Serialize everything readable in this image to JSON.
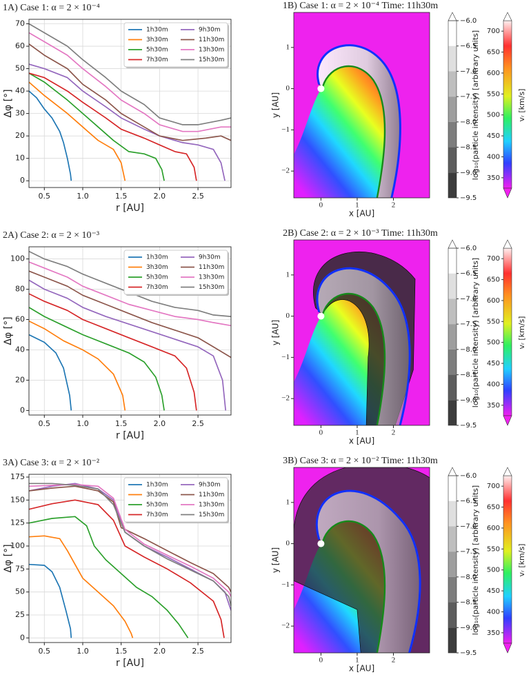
{
  "chart_data": [
    {
      "type": "line",
      "title": "1A) Case 1: α = 2 × 10⁻⁴",
      "xlabel": "r [AU]",
      "ylabel": "Δφ [°]",
      "xlim": [
        0.3,
        2.93
      ],
      "ylim": [
        -3,
        72
      ],
      "xticks": [
        0.5,
        {
          "value": 1,
          "label": "1.0"
        },
        1.5,
        {
          "value": 2,
          "label": "2.0"
        },
        2.5
      ],
      "yticks": [
        0,
        10,
        20,
        30,
        40,
        50,
        60,
        70
      ],
      "grid": true,
      "legend": "upper right",
      "series": [
        {
          "name": "1h30m",
          "color": "#1f77b4",
          "x": [
            0.3,
            0.4,
            0.5,
            0.6,
            0.7,
            0.75,
            0.8,
            0.84,
            0.85
          ],
          "values": [
            40,
            37,
            32,
            28,
            22,
            17,
            10,
            3,
            0
          ]
        },
        {
          "name": "3h30m",
          "color": "#ff7f0e",
          "x": [
            0.3,
            0.5,
            0.8,
            1.0,
            1.2,
            1.4,
            1.5,
            1.55
          ],
          "values": [
            44,
            38,
            30,
            24,
            18,
            14,
            8,
            0
          ]
        },
        {
          "name": "5h30m",
          "color": "#2ca02c",
          "x": [
            0.3,
            0.5,
            0.8,
            1.0,
            1.2,
            1.4,
            1.6,
            1.8,
            1.95,
            2.03,
            2.06
          ],
          "values": [
            48,
            44,
            36,
            30,
            24,
            18,
            13,
            12,
            10,
            5,
            0
          ]
        },
        {
          "name": "7h30m",
          "color": "#d62728",
          "x": [
            0.3,
            0.5,
            0.8,
            1.0,
            1.3,
            1.5,
            1.8,
            2.0,
            2.2,
            2.35,
            2.45,
            2.48
          ],
          "values": [
            48,
            46,
            40,
            35,
            28,
            23,
            19,
            16,
            13,
            12,
            6,
            0
          ]
        },
        {
          "name": "9h30m",
          "color": "#9467bd",
          "x": [
            0.3,
            0.5,
            0.8,
            1.0,
            1.3,
            1.5,
            1.8,
            2.0,
            2.3,
            2.5,
            2.7,
            2.8,
            2.85
          ],
          "values": [
            52,
            50,
            46,
            40,
            33,
            28,
            23,
            20,
            17,
            16,
            14,
            8,
            0
          ]
        },
        {
          "name": "11h30m",
          "color": "#8c564b",
          "x": [
            0.3,
            0.5,
            0.8,
            1.0,
            1.3,
            1.5,
            1.8,
            2.0,
            2.3,
            2.6,
            2.8,
            2.93
          ],
          "values": [
            61,
            56,
            50,
            43,
            36,
            30,
            24,
            20,
            18,
            19,
            20,
            18
          ]
        },
        {
          "name": "13h30m",
          "color": "#e377c2",
          "x": [
            0.3,
            0.5,
            0.8,
            1.0,
            1.3,
            1.5,
            1.8,
            2.0,
            2.3,
            2.5,
            2.8,
            2.93
          ],
          "values": [
            66,
            62,
            56,
            50,
            42,
            36,
            30,
            25,
            22,
            22,
            24,
            24
          ]
        },
        {
          "name": "15h30m",
          "color": "#7f7f7f",
          "x": [
            0.3,
            0.5,
            0.8,
            1.0,
            1.3,
            1.5,
            1.8,
            2.0,
            2.3,
            2.5,
            2.8,
            2.93
          ],
          "values": [
            70,
            66,
            60,
            54,
            46,
            40,
            34,
            28,
            25,
            25,
            27,
            28
          ]
        }
      ]
    },
    {
      "type": "heatmap",
      "title": "1B) Case 1: α = 2 × 10⁻⁴ Time: 11h30m",
      "xlabel": "x [AU]",
      "ylabel": "y [AU]",
      "xlim": [
        -0.75,
        3.0
      ],
      "ylim": [
        -2.65,
        1.85
      ],
      "xticks": [
        0,
        1,
        2
      ],
      "yticks": [
        {
          "value": -2,
          "label": "−2"
        },
        {
          "value": -1,
          "label": "−1"
        },
        0,
        1
      ],
      "grid": false,
      "colorbars": [
        {
          "label": "log₁₀(particle intensity) [arbitrary units]",
          "lim": [
            -9.5,
            -6.0
          ],
          "ticks": [
            {
              "value": -6,
              "label": "−6.0"
            },
            {
              "value": -6.5,
              "label": "−6.5"
            },
            {
              "value": -7,
              "label": "−7.0"
            },
            {
              "value": -7.5,
              "label": "−7.5"
            },
            {
              "value": -8,
              "label": "−8.0"
            },
            {
              "value": -8.5,
              "label": "−8.5"
            },
            {
              "value": -9,
              "label": "−9.0"
            },
            {
              "value": -9.5,
              "label": "−9.5"
            }
          ]
        },
        {
          "label": "vᵣ [km/s]",
          "lim": [
            325,
            725
          ],
          "ticks": [
            350,
            400,
            450,
            500,
            550,
            600,
            650,
            700
          ]
        }
      ]
    },
    {
      "type": "line",
      "title": "2A) Case 2: α = 2 × 10⁻³",
      "xlabel": "r [AU]",
      "ylabel": "Δφ [°]",
      "xlim": [
        0.3,
        2.93
      ],
      "ylim": [
        -3,
        108
      ],
      "xticks": [
        0.5,
        {
          "value": 1,
          "label": "1.0"
        },
        1.5,
        {
          "value": 2,
          "label": "2.0"
        },
        2.5
      ],
      "yticks": [
        0,
        20,
        40,
        60,
        80,
        100
      ],
      "grid": true,
      "legend": "upper right",
      "series": [
        {
          "name": "1h30m",
          "color": "#1f77b4",
          "x": [
            0.3,
            0.5,
            0.65,
            0.75,
            0.83,
            0.85
          ],
          "values": [
            50,
            45,
            38,
            28,
            10,
            0
          ]
        },
        {
          "name": "3h30m",
          "color": "#ff7f0e",
          "x": [
            0.3,
            0.5,
            0.75,
            1.0,
            1.2,
            1.4,
            1.52,
            1.55
          ],
          "values": [
            59,
            54,
            46,
            40,
            34,
            24,
            10,
            0
          ]
        },
        {
          "name": "5h30m",
          "color": "#2ca02c",
          "x": [
            0.3,
            0.5,
            0.75,
            1.0,
            1.3,
            1.6,
            1.8,
            1.95,
            2.03,
            2.06
          ],
          "values": [
            68,
            62,
            56,
            50,
            44,
            38,
            32,
            22,
            10,
            0
          ]
        },
        {
          "name": "7h30m",
          "color": "#d62728",
          "x": [
            0.3,
            0.5,
            0.8,
            1.0,
            1.3,
            1.6,
            1.9,
            2.2,
            2.35,
            2.45,
            2.48
          ],
          "values": [
            77,
            72,
            66,
            60,
            54,
            48,
            42,
            36,
            28,
            12,
            0
          ]
        },
        {
          "name": "9h30m",
          "color": "#9467bd",
          "x": [
            0.3,
            0.5,
            0.8,
            1.0,
            1.3,
            1.6,
            1.9,
            2.2,
            2.5,
            2.7,
            2.82,
            2.86
          ],
          "values": [
            86,
            80,
            74,
            68,
            62,
            57,
            52,
            47,
            42,
            36,
            20,
            0
          ]
        },
        {
          "name": "11h30m",
          "color": "#8c564b",
          "x": [
            0.3,
            0.5,
            0.8,
            1.0,
            1.3,
            1.6,
            1.9,
            2.2,
            2.5,
            2.7,
            2.93
          ],
          "values": [
            92,
            88,
            82,
            76,
            70,
            64,
            58,
            53,
            48,
            42,
            35
          ]
        },
        {
          "name": "13h30m",
          "color": "#e377c2",
          "x": [
            0.3,
            0.5,
            0.8,
            1.0,
            1.3,
            1.6,
            1.9,
            2.2,
            2.5,
            2.7,
            2.93
          ],
          "values": [
            98,
            94,
            88,
            82,
            76,
            70,
            66,
            62,
            60,
            58,
            56
          ]
        },
        {
          "name": "15h30m",
          "color": "#7f7f7f",
          "x": [
            0.3,
            0.5,
            0.8,
            1.0,
            1.3,
            1.6,
            1.9,
            2.2,
            2.5,
            2.7,
            2.93
          ],
          "values": [
            105,
            100,
            95,
            90,
            84,
            78,
            72,
            68,
            66,
            63,
            62
          ]
        }
      ]
    },
    {
      "type": "heatmap",
      "title": "2B) Case 2: α = 2 × 10⁻³ Time: 11h30m",
      "xlabel": "x [AU]",
      "ylabel": "y [AU]",
      "xlim": [
        -0.75,
        3.0
      ],
      "ylim": [
        -2.65,
        1.85
      ],
      "xticks": [
        0,
        1,
        2
      ],
      "yticks": [
        {
          "value": -2,
          "label": "−2"
        },
        {
          "value": -1,
          "label": "−1"
        },
        0,
        1
      ],
      "grid": false,
      "colorbars": [
        {
          "label": "log₁₀(particle intensity) [arbitrary units]",
          "lim": [
            -9.5,
            -6.0
          ],
          "ticks": [
            {
              "value": -6,
              "label": "−6.0"
            },
            {
              "value": -6.5,
              "label": "−6.5"
            },
            {
              "value": -7,
              "label": "−7.0"
            },
            {
              "value": -7.5,
              "label": "−7.5"
            },
            {
              "value": -8,
              "label": "−8.0"
            },
            {
              "value": -8.5,
              "label": "−8.5"
            },
            {
              "value": -9,
              "label": "−9.0"
            },
            {
              "value": -9.5,
              "label": "−9.5"
            }
          ]
        },
        {
          "label": "vᵣ [km/s]",
          "lim": [
            325,
            725
          ],
          "ticks": [
            350,
            400,
            450,
            500,
            550,
            600,
            650,
            700
          ]
        }
      ]
    },
    {
      "type": "line",
      "title": "3A) Case 3: α = 2 × 10⁻²",
      "xlabel": "r [AU]",
      "ylabel": "Δφ [°]",
      "xlim": [
        0.3,
        2.93
      ],
      "ylim": [
        -5,
        178
      ],
      "xticks": [
        0.5,
        {
          "value": 1,
          "label": "1.0"
        },
        1.5,
        {
          "value": 2,
          "label": "2.0"
        },
        2.5
      ],
      "yticks": [
        0,
        25,
        50,
        75,
        100,
        125,
        150,
        175
      ],
      "grid": true,
      "legend": "upper right",
      "series": [
        {
          "name": "1h30m",
          "color": "#1f77b4",
          "x": [
            0.3,
            0.5,
            0.6,
            0.7,
            0.78,
            0.84,
            0.85
          ],
          "values": [
            80,
            79,
            72,
            55,
            30,
            10,
            0
          ]
        },
        {
          "name": "3h30m",
          "color": "#ff7f0e",
          "x": [
            0.3,
            0.5,
            0.7,
            0.8,
            0.9,
            1.0,
            1.2,
            1.4,
            1.55,
            1.63,
            1.65
          ],
          "values": [
            110,
            111,
            108,
            95,
            80,
            65,
            50,
            35,
            18,
            5,
            0
          ]
        },
        {
          "name": "5h30m",
          "color": "#2ca02c",
          "x": [
            0.3,
            0.6,
            0.9,
            1.05,
            1.15,
            1.3,
            1.5,
            1.7,
            1.9,
            2.1,
            2.25,
            2.37
          ],
          "values": [
            125,
            130,
            132,
            122,
            100,
            85,
            70,
            55,
            45,
            30,
            15,
            0
          ]
        },
        {
          "name": "7h30m",
          "color": "#d62728",
          "x": [
            0.3,
            0.6,
            0.9,
            1.2,
            1.4,
            1.55,
            1.8,
            2.1,
            2.4,
            2.7,
            2.8,
            2.84
          ],
          "values": [
            140,
            146,
            150,
            145,
            128,
            100,
            88,
            75,
            60,
            40,
            20,
            0
          ]
        },
        {
          "name": "9h30m",
          "color": "#9467bd",
          "x": [
            0.3,
            0.6,
            0.9,
            1.2,
            1.4,
            1.55,
            1.8,
            2.1,
            2.4,
            2.7,
            2.85,
            2.93
          ],
          "values": [
            160,
            165,
            168,
            162,
            150,
            115,
            100,
            88,
            75,
            62,
            50,
            30
          ]
        },
        {
          "name": "11h30m",
          "color": "#8c564b",
          "x": [
            0.3,
            0.6,
            0.9,
            1.2,
            1.4,
            1.5,
            1.8,
            2.1,
            2.4,
            2.7,
            2.9,
            2.93
          ],
          "values": [
            160,
            163,
            165,
            160,
            148,
            120,
            108,
            95,
            82,
            70,
            55,
            50
          ]
        },
        {
          "name": "13h30m",
          "color": "#e377c2",
          "x": [
            0.3,
            0.6,
            0.9,
            1.2,
            1.4,
            1.55,
            1.8,
            2.1,
            2.4,
            2.7,
            2.9,
            2.93
          ],
          "values": [
            165,
            166,
            167,
            165,
            152,
            118,
            102,
            90,
            78,
            65,
            50,
            45
          ]
        },
        {
          "name": "15h30m",
          "color": "#7f7f7f",
          "x": [
            0.3,
            0.6,
            0.9,
            1.2,
            1.4,
            1.55,
            1.8,
            2.1,
            2.4,
            2.7,
            2.9,
            2.93
          ],
          "values": [
            168,
            168,
            166,
            162,
            145,
            115,
            100,
            86,
            74,
            62,
            45,
            35
          ]
        }
      ]
    },
    {
      "type": "heatmap",
      "title": "3B) Case 3: α = 2 × 10⁻² Time: 11h30m",
      "xlabel": "x [AU]",
      "ylabel": "y [AU]",
      "xlim": [
        -0.75,
        3.0
      ],
      "ylim": [
        -2.65,
        1.85
      ],
      "xticks": [
        0,
        1,
        2
      ],
      "yticks": [
        {
          "value": -2,
          "label": "−2"
        },
        {
          "value": -1,
          "label": "−1"
        },
        0,
        1
      ],
      "grid": false,
      "colorbars": [
        {
          "label": "log₁₀(particle intensity) [arbitrary units]",
          "lim": [
            -9.5,
            -6.0
          ],
          "ticks": [
            {
              "value": -6,
              "label": "−6.0"
            },
            {
              "value": -6.5,
              "label": "−6.5"
            },
            {
              "value": -7,
              "label": "−7.0"
            },
            {
              "value": -7.5,
              "label": "−7.5"
            },
            {
              "value": -8,
              "label": "−8.0"
            },
            {
              "value": -8.5,
              "label": "−8.5"
            },
            {
              "value": -9,
              "label": "−9.0"
            },
            {
              "value": -9.5,
              "label": "−9.5"
            }
          ]
        },
        {
          "label": "vᵣ [km/s]",
          "lim": [
            325,
            725
          ],
          "ticks": [
            350,
            400,
            450,
            500,
            550,
            600,
            650,
            700
          ]
        }
      ]
    }
  ]
}
